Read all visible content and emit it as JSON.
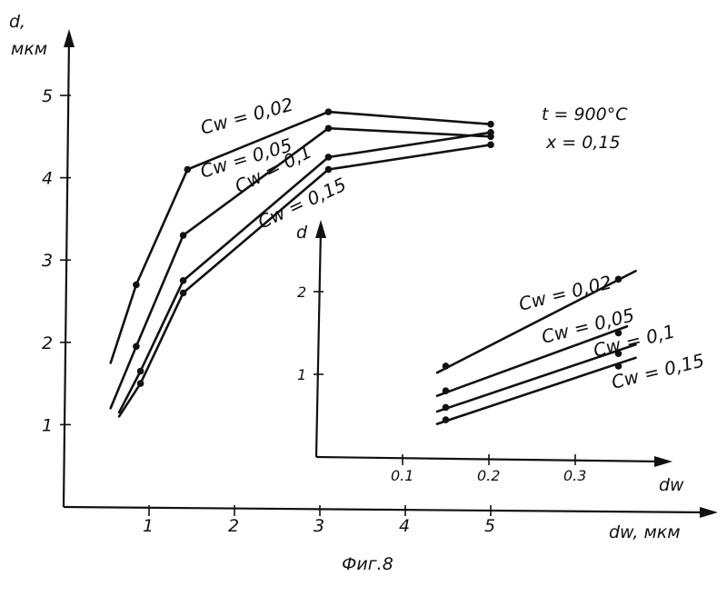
{
  "chart_data": [
    {
      "type": "line",
      "xlabel": "dw, мкм",
      "ylabel": "d,",
      "ylabel_unit": "мкм",
      "x_ticks": [
        "1",
        "2",
        "3",
        "4",
        "5"
      ],
      "y_ticks": [
        "1",
        "2",
        "3",
        "4",
        "5"
      ],
      "xlim": [
        0,
        6.6
      ],
      "ylim": [
        0,
        5.5
      ],
      "params": [
        "t = 900°C",
        "x = 0,15"
      ],
      "series": [
        {
          "name": "Cw = 0,02",
          "x": [
            0.85,
            1.45,
            3.1,
            5.0
          ],
          "y": [
            2.7,
            4.1,
            4.8,
            4.65
          ],
          "line_start": [
            0.55,
            1.75
          ]
        },
        {
          "name": "Cw = 0,05",
          "x": [
            0.85,
            1.4,
            3.1,
            5.0
          ],
          "y": [
            1.95,
            3.3,
            4.6,
            4.5
          ],
          "line_start": [
            0.55,
            1.2
          ]
        },
        {
          "name": "Cw = 0,1",
          "x": [
            0.9,
            1.4,
            3.1,
            5.0
          ],
          "y": [
            1.65,
            2.75,
            4.25,
            4.55
          ],
          "line_start": [
            0.65,
            1.15
          ]
        },
        {
          "name": "Cw = 0,15",
          "x": [
            0.9,
            1.4,
            3.1,
            5.0
          ],
          "y": [
            1.5,
            2.6,
            4.1,
            4.4
          ],
          "line_start": [
            0.65,
            1.1
          ]
        }
      ]
    },
    {
      "type": "line",
      "xlabel": "dw",
      "ylabel": "d",
      "x_ticks": [
        "0.1",
        "0.2",
        "0.3"
      ],
      "y_ticks": [
        "1",
        "2"
      ],
      "xlim": [
        0,
        0.42
      ],
      "ylim": [
        0,
        2.6
      ],
      "series": [
        {
          "name": "Cw = 0,02",
          "x": [
            0.15,
            0.35
          ],
          "y": [
            1.1,
            2.15
          ],
          "line": [
            0.14,
            1.02,
            0.37,
            2.25
          ]
        },
        {
          "name": "Cw = 0,05",
          "x": [
            0.15,
            0.35
          ],
          "y": [
            0.8,
            1.5
          ],
          "line": [
            0.14,
            0.74,
            0.36,
            1.58
          ]
        },
        {
          "name": "Cw = 0,1",
          "x": [
            0.15,
            0.35
          ],
          "y": [
            0.6,
            1.25
          ],
          "line": [
            0.14,
            0.55,
            0.37,
            1.36
          ]
        },
        {
          "name": "Cw = 0,15",
          "x": [
            0.15,
            0.35
          ],
          "y": [
            0.45,
            1.1
          ],
          "line": [
            0.14,
            0.4,
            0.37,
            1.2
          ]
        }
      ]
    }
  ],
  "caption": "Фиг.8"
}
